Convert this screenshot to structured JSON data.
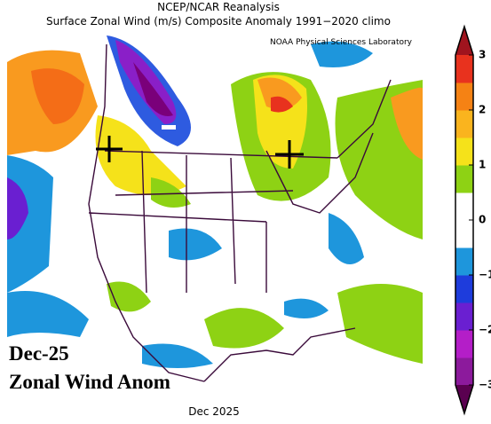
{
  "header": {
    "title": "NCEP/NCAR Reanalysis",
    "subtitle": "Surface Zonal Wind (m/s) Composite Anomaly 1991−2020 climo",
    "credit": "NOAA Physical Sciences Laboratory"
  },
  "overlay": {
    "date": "Dec-25",
    "field": "Zonal Wind Anom"
  },
  "footer": "Dec 2025",
  "colorbar": {
    "lim": [
      -3,
      3
    ],
    "ticks": [
      3,
      2,
      1,
      0,
      {
        "value": -1,
        "label": "−1"
      },
      {
        "value": -2,
        "label": "−2"
      },
      {
        "value": -3,
        "label": "−3"
      }
    ],
    "under_color": "#5a0050",
    "over_color": "#a0141e",
    "colors": [
      "#8c1a9c",
      "#b41ec8",
      "#6a1fd1",
      "#1e3cdc",
      "#1e96dc",
      "#ffffff",
      "#ffffff",
      "#8ed214",
      "#f5e21a",
      "#fab41e",
      "#f58214",
      "#e8321e"
    ]
  }
}
